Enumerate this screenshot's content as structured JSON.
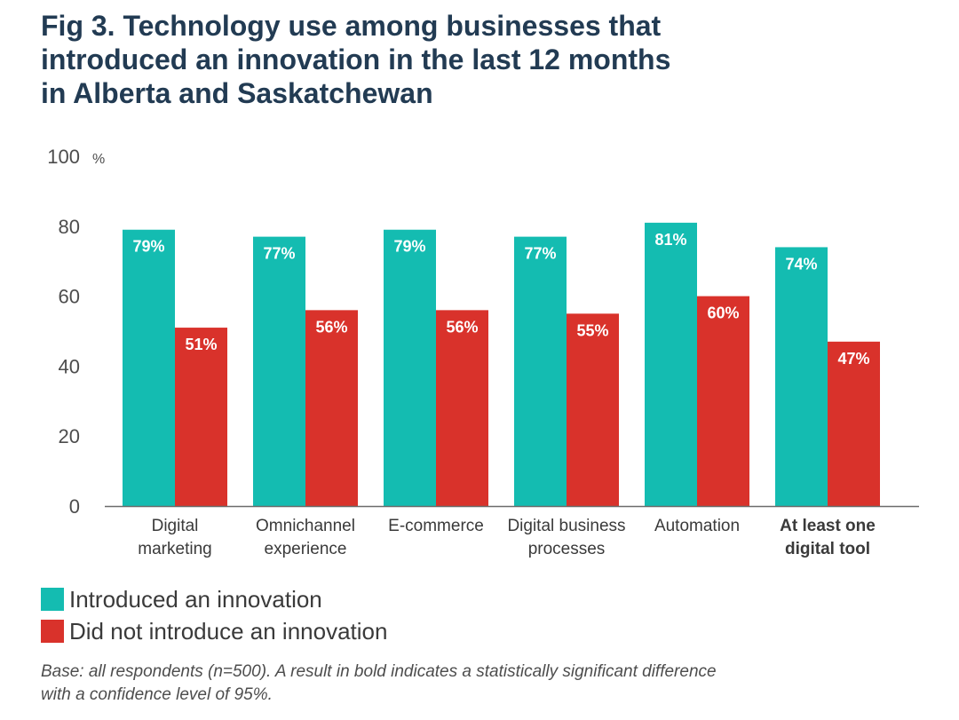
{
  "title_lines": [
    "Fig 3. Technology use among businesses that",
    "introduced an innovation in the last 12 months",
    "in Alberta and Saskatchewan"
  ],
  "colors": {
    "introduced": "#14bcb1",
    "not_introduced": "#d9322b",
    "title": "#223b53"
  },
  "legend": [
    {
      "label": "Introduced an innovation",
      "color": "#14bcb1"
    },
    {
      "label": "Did not introduce an innovation",
      "color": "#d9322b"
    }
  ],
  "note_lines": [
    "Base: all respondents (n=500). A result in bold indicates a statistically significant difference",
    "with a confidence level of 95%."
  ],
  "chart_data": {
    "type": "bar",
    "unit": "%",
    "ylim": [
      0,
      100
    ],
    "yticks": [
      0,
      20,
      40,
      60,
      80,
      100
    ],
    "grid": false,
    "legend_position": "bottom-left",
    "categories": [
      [
        "Digital",
        "marketing"
      ],
      [
        "Omnichannel",
        "experience"
      ],
      [
        "E-commerce"
      ],
      [
        "Digital business",
        "processes"
      ],
      [
        "Automation"
      ],
      [
        "At least one",
        "digital tool"
      ]
    ],
    "bold_categories": [
      5
    ],
    "series": [
      {
        "name": "Introduced an innovation",
        "color": "#14bcb1",
        "values": [
          79,
          77,
          79,
          77,
          81,
          74
        ],
        "labels": [
          "79%",
          "77%",
          "79%",
          "77%",
          "81%",
          "74%"
        ]
      },
      {
        "name": "Did not introduce an innovation",
        "color": "#d9322b",
        "values": [
          51,
          56,
          56,
          55,
          60,
          47
        ],
        "labels": [
          "51%",
          "56%",
          "56%",
          "55%",
          "60%",
          "47%"
        ]
      }
    ]
  }
}
